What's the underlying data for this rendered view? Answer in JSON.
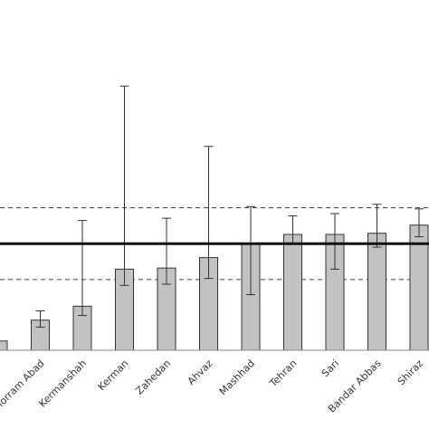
{
  "chart_data": {
    "type": "bar",
    "categories": [
      "",
      "Khorram Abad",
      "Kermanshah",
      "Kerman",
      "Zahedan",
      "Ahvaz",
      "Mashhad",
      "Tehran",
      "Sari",
      "Bandar Abbas",
      "Shiraz"
    ],
    "values": [
      0.4,
      1.3,
      1.9,
      3.5,
      3.55,
      4.0,
      4.6,
      5.0,
      5.0,
      5.05,
      5.4
    ],
    "error_low": [
      null,
      1.0,
      1.5,
      2.8,
      2.85,
      3.1,
      2.4,
      4.6,
      3.5,
      4.45,
      4.9
    ],
    "error_high": [
      null,
      1.7,
      5.6,
      11.4,
      5.7,
      8.8,
      6.2,
      5.8,
      5.9,
      6.3,
      6.1
    ],
    "reference_line": 4.6,
    "reference_band": [
      3.05,
      6.15
    ],
    "ylim": [
      0,
      12.5
    ],
    "bar_color": "#c0c3c2",
    "bar_edge_color": "#333333",
    "reference_line_color": "#111111",
    "band_line_color": "#444444",
    "grid": false,
    "xlabel": "",
    "ylabel": "",
    "title": ""
  }
}
